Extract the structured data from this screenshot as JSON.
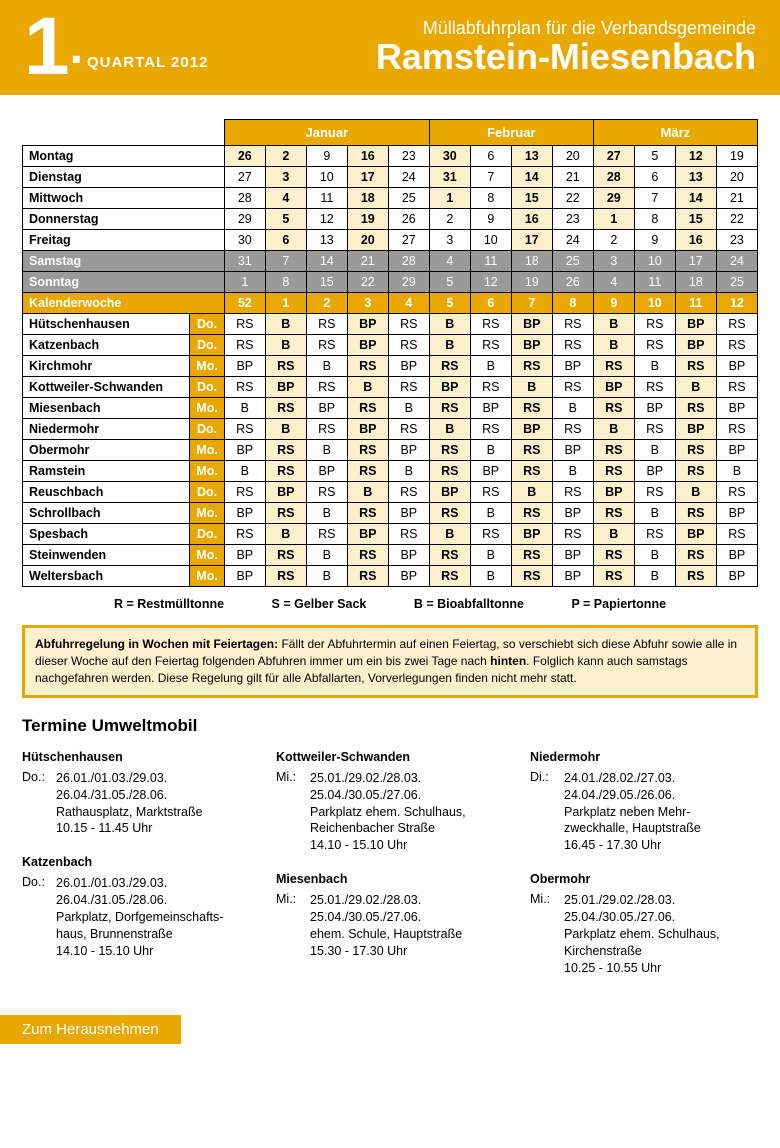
{
  "header": {
    "number": "1",
    "dot": ".",
    "quartal": "QUARTAL 2012",
    "subtitle": "Müllabfuhrplan für die Verbandsgemeinde",
    "title": "Ramstein-Miesenbach"
  },
  "months": [
    "Januar",
    "Februar",
    "März"
  ],
  "days": [
    {
      "name": "Montag",
      "cells": [
        "26",
        "2",
        "9",
        "16",
        "23",
        "30",
        "6",
        "13",
        "20",
        "27",
        "5",
        "12",
        "19"
      ],
      "cream": [
        0,
        1,
        3,
        5,
        7,
        9,
        11
      ],
      "weekend": false
    },
    {
      "name": "Dienstag",
      "cells": [
        "27",
        "3",
        "10",
        "17",
        "24",
        "31",
        "7",
        "14",
        "21",
        "28",
        "6",
        "13",
        "20"
      ],
      "cream": [
        1,
        3,
        5,
        7,
        9,
        11
      ],
      "weekend": false
    },
    {
      "name": "Mittwoch",
      "cells": [
        "28",
        "4",
        "11",
        "18",
        "25",
        "1",
        "8",
        "15",
        "22",
        "29",
        "7",
        "14",
        "21"
      ],
      "cream": [
        1,
        3,
        5,
        7,
        9,
        11
      ],
      "weekend": false
    },
    {
      "name": "Donnerstag",
      "cells": [
        "29",
        "5",
        "12",
        "19",
        "26",
        "2",
        "9",
        "16",
        "23",
        "1",
        "8",
        "15",
        "22"
      ],
      "cream": [
        1,
        3,
        7,
        9,
        11
      ],
      "weekend": false
    },
    {
      "name": "Freitag",
      "cells": [
        "30",
        "6",
        "13",
        "20",
        "27",
        "3",
        "10",
        "17",
        "24",
        "2",
        "9",
        "16",
        "23"
      ],
      "cream": [
        1,
        3,
        7,
        11
      ],
      "weekend": false
    },
    {
      "name": "Samstag",
      "cells": [
        "31",
        "7",
        "14",
        "21",
        "28",
        "4",
        "11",
        "18",
        "25",
        "3",
        "10",
        "17",
        "24"
      ],
      "cream": [],
      "weekend": true
    },
    {
      "name": "Sonntag",
      "cells": [
        "1",
        "8",
        "15",
        "22",
        "29",
        "5",
        "12",
        "19",
        "26",
        "4",
        "11",
        "18",
        "25"
      ],
      "cream": [],
      "weekend": true
    }
  ],
  "kw_label": "Kalenderwoche",
  "kw": [
    "52",
    "1",
    "2",
    "3",
    "4",
    "5",
    "6",
    "7",
    "8",
    "9",
    "10",
    "11",
    "12"
  ],
  "towns": [
    {
      "name": "Hütschenhausen",
      "day": "Do.",
      "cells": [
        "RS",
        "B",
        "RS",
        "BP",
        "RS",
        "B",
        "RS",
        "BP",
        "RS",
        "B",
        "RS",
        "BP",
        "RS"
      ]
    },
    {
      "name": "Katzenbach",
      "day": "Do.",
      "cells": [
        "RS",
        "B",
        "RS",
        "BP",
        "RS",
        "B",
        "RS",
        "BP",
        "RS",
        "B",
        "RS",
        "BP",
        "RS"
      ]
    },
    {
      "name": "Kirchmohr",
      "day": "Mo.",
      "cells": [
        "BP",
        "RS",
        "B",
        "RS",
        "BP",
        "RS",
        "B",
        "RS",
        "BP",
        "RS",
        "B",
        "RS",
        "BP"
      ]
    },
    {
      "name": "Kottweiler-Schwanden",
      "day": "Do.",
      "cells": [
        "RS",
        "BP",
        "RS",
        "B",
        "RS",
        "BP",
        "RS",
        "B",
        "RS",
        "BP",
        "RS",
        "B",
        "RS"
      ]
    },
    {
      "name": "Miesenbach",
      "day": "Mo.",
      "cells": [
        "B",
        "RS",
        "BP",
        "RS",
        "B",
        "RS",
        "BP",
        "RS",
        "B",
        "RS",
        "BP",
        "RS",
        "BP"
      ]
    },
    {
      "name": "Niedermohr",
      "day": "Do.",
      "cells": [
        "RS",
        "B",
        "RS",
        "BP",
        "RS",
        "B",
        "RS",
        "BP",
        "RS",
        "B",
        "RS",
        "BP",
        "RS"
      ]
    },
    {
      "name": "Obermohr",
      "day": "Mo.",
      "cells": [
        "BP",
        "RS",
        "B",
        "RS",
        "BP",
        "RS",
        "B",
        "RS",
        "BP",
        "RS",
        "B",
        "RS",
        "BP"
      ]
    },
    {
      "name": "Ramstein",
      "day": "Mo.",
      "cells": [
        "B",
        "RS",
        "BP",
        "RS",
        "B",
        "RS",
        "BP",
        "RS",
        "B",
        "RS",
        "BP",
        "RS",
        "B"
      ]
    },
    {
      "name": "Reuschbach",
      "day": "Do.",
      "cells": [
        "RS",
        "BP",
        "RS",
        "B",
        "RS",
        "BP",
        "RS",
        "B",
        "RS",
        "BP",
        "RS",
        "B",
        "RS"
      ]
    },
    {
      "name": "Schrollbach",
      "day": "Mo.",
      "cells": [
        "BP",
        "RS",
        "B",
        "RS",
        "BP",
        "RS",
        "B",
        "RS",
        "BP",
        "RS",
        "B",
        "RS",
        "BP"
      ]
    },
    {
      "name": "Spesbach",
      "day": "Do.",
      "cells": [
        "RS",
        "B",
        "RS",
        "BP",
        "RS",
        "B",
        "RS",
        "BP",
        "RS",
        "B",
        "RS",
        "BP",
        "RS"
      ]
    },
    {
      "name": "Steinwenden",
      "day": "Mo.",
      "cells": [
        "BP",
        "RS",
        "B",
        "RS",
        "BP",
        "RS",
        "B",
        "RS",
        "BP",
        "RS",
        "B",
        "RS",
        "BP"
      ]
    },
    {
      "name": "Weltersbach",
      "day": "Mo.",
      "cells": [
        "BP",
        "RS",
        "B",
        "RS",
        "BP",
        "RS",
        "B",
        "RS",
        "BP",
        "RS",
        "B",
        "RS",
        "BP"
      ]
    }
  ],
  "legend": {
    "r": "R = Restmülltonne",
    "s": "S = Gelber Sack",
    "b": "B =  Bioabfalltonne",
    "p": "P = Papiertonne"
  },
  "notice_bold": "Abfuhrregelung in Wochen mit Feiertagen:",
  "notice_text1": " Fällt der Abfuhrtermin auf einen Feiertag, so verschiebt sich diese Abfuhr sowie alle in dieser Woche auf den Feiertag folgenden Abfuhren immer um ein bis zwei Tage nach ",
  "notice_bold2": "hinten",
  "notice_text2": ". Folglich kann auch samstags nachgefahren werden. Diese Regelung gilt für alle Abfallarten, Vorverlegungen finden nicht mehr statt.",
  "umwelt_title": "Termine Umweltmobil",
  "umwelt": [
    [
      {
        "loc": "Hütschenhausen",
        "day": "Do.:",
        "lines": [
          "26.01./01.03./29.03.",
          "26.04./31.05./28.06.",
          "Rathausplatz, Marktstraße",
          "10.15 - 11.45 Uhr"
        ]
      },
      {
        "loc": "Katzenbach",
        "day": "Do.:",
        "lines": [
          "26.01./01.03./29.03.",
          "26.04./31.05./28.06.",
          "Parkplatz, Dorfgemeinschafts-",
          "haus, Brunnenstraße",
          "14.10 - 15.10 Uhr"
        ]
      }
    ],
    [
      {
        "loc": "Kottweiler-Schwanden",
        "day": "Mi.:",
        "lines": [
          "25.01./29.02./28.03.",
          "25.04./30.05./27.06.",
          "Parkplatz ehem. Schulhaus,",
          "Reichenbacher Straße",
          "14.10 - 15.10 Uhr"
        ]
      },
      {
        "loc": "Miesenbach",
        "day": "Mi.:",
        "lines": [
          "25.01./29.02./28.03.",
          "25.04./30.05./27.06.",
          "ehem. Schule, Hauptstraße",
          "15.30 - 17.30 Uhr"
        ]
      }
    ],
    [
      {
        "loc": "Niedermohr",
        "day": "Di.:",
        "lines": [
          "24.01./28.02./27.03.",
          "24.04./29.05./26.06.",
          "Parkplatz neben Mehr-",
          "zweckhalle, Hauptstraße",
          "16.45 - 17.30 Uhr"
        ]
      },
      {
        "loc": "Obermohr",
        "day": "Mi.:",
        "lines": [
          "25.01./29.02./28.03.",
          "25.04./30.05./27.06.",
          "Parkplatz ehem. Schulhaus,",
          "Kirchenstraße",
          "10.25 - 10.55 Uhr"
        ]
      }
    ]
  ],
  "footer": "Zum Herausnehmen",
  "colors": {
    "accent": "#e8a800",
    "cream": "#fdf0cc",
    "gray": "#9a9a9a"
  }
}
